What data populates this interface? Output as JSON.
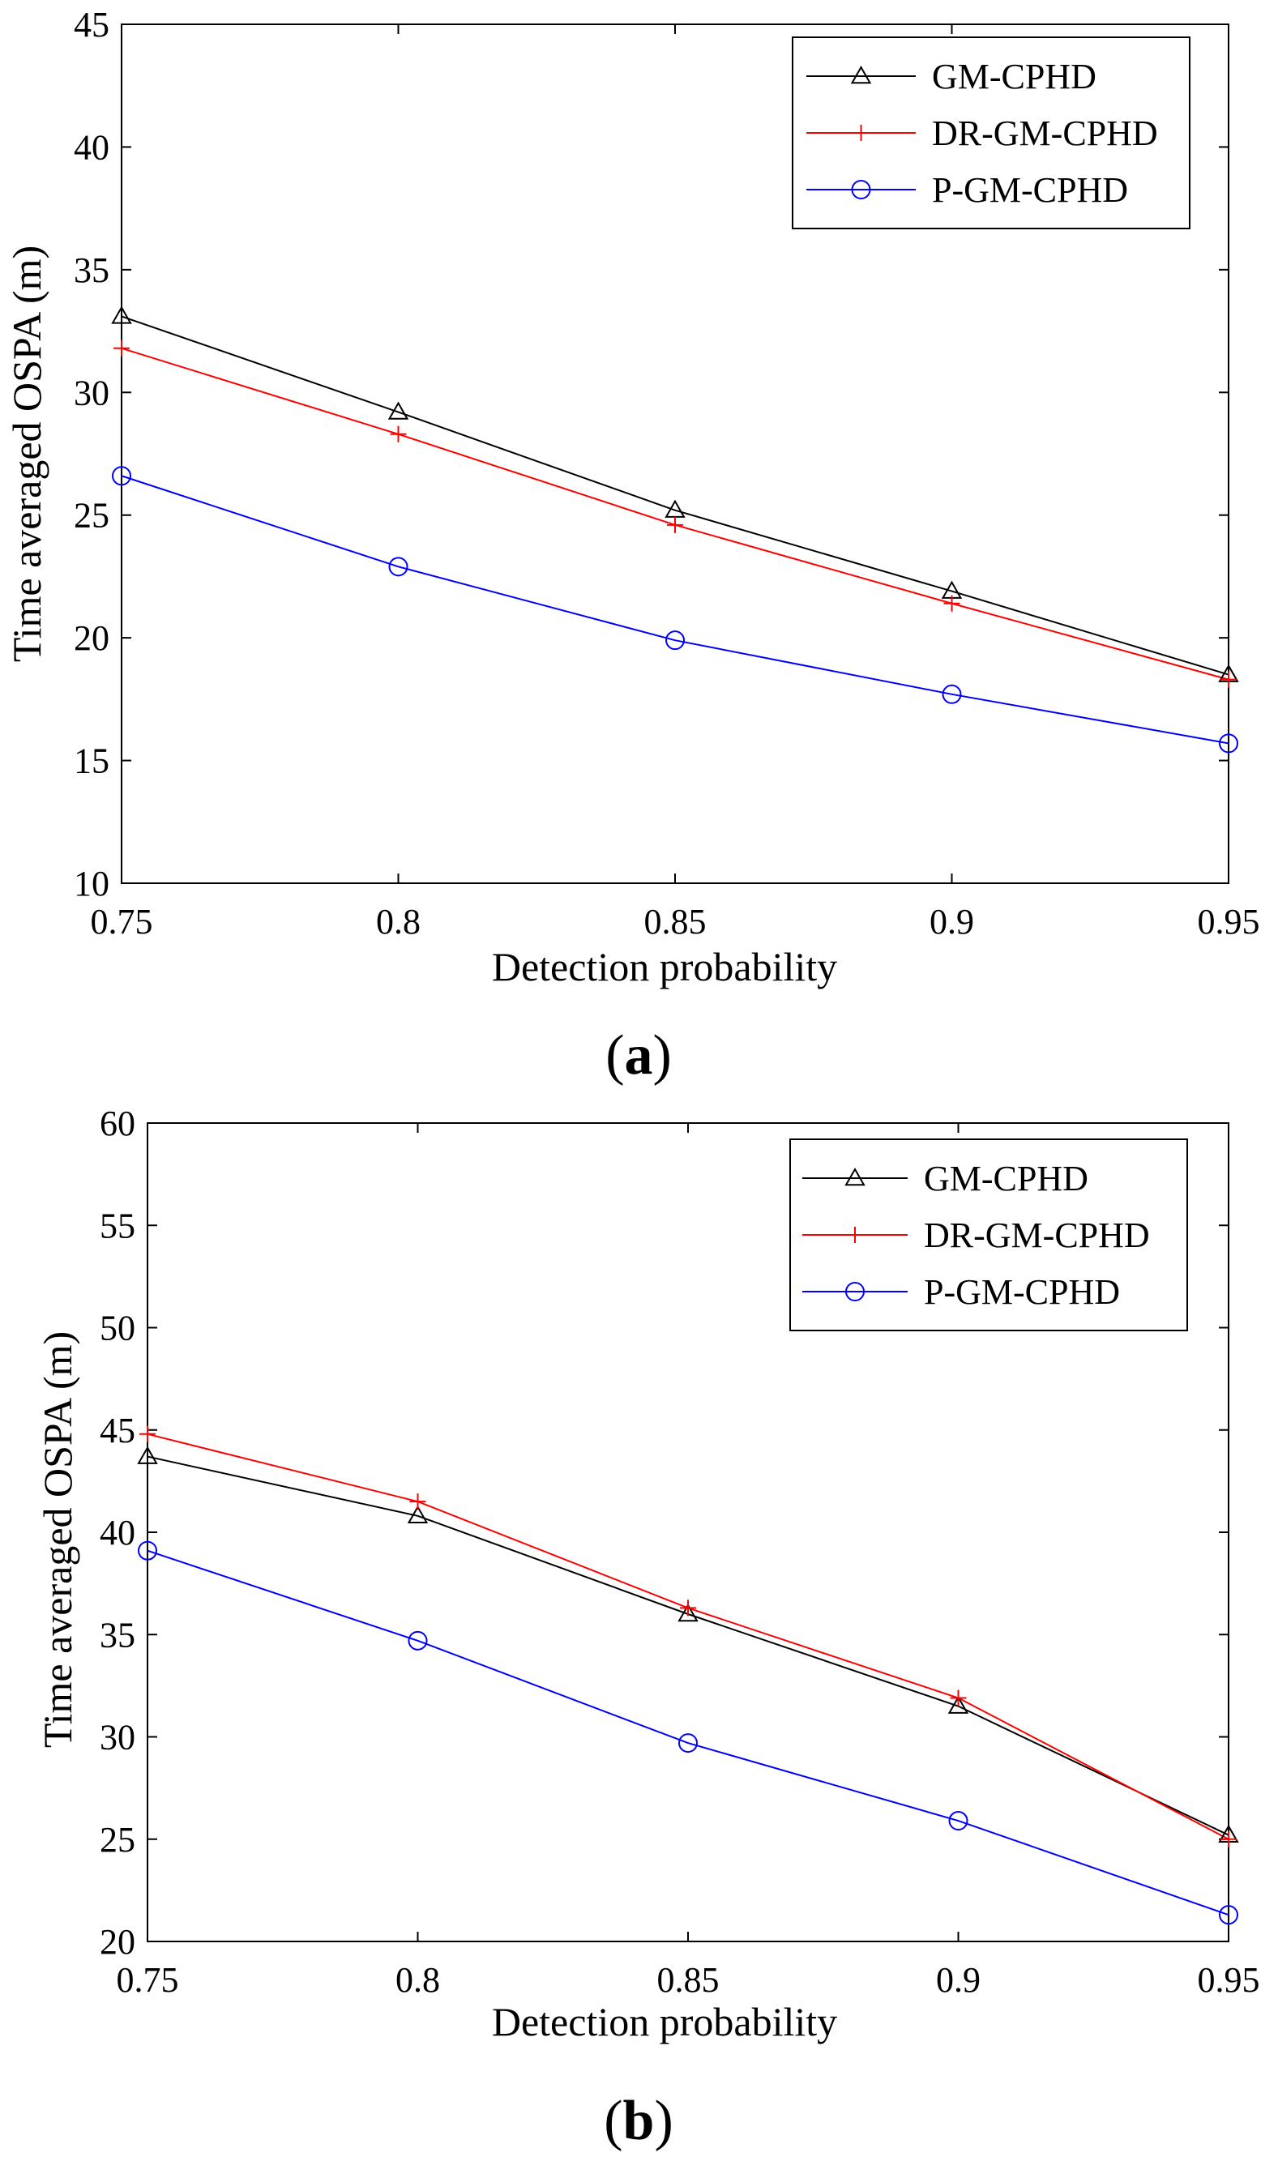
{
  "chart_data": [
    {
      "type": "line",
      "caption": "a",
      "x": [
        0.75,
        0.8,
        0.85,
        0.9,
        0.95
      ],
      "xticks": [
        "0.75",
        "0.8",
        "0.85",
        "0.9",
        "0.95"
      ],
      "xlim": [
        0.75,
        0.95
      ],
      "yticks": [
        "10",
        "15",
        "20",
        "25",
        "30",
        "35",
        "40",
        "45"
      ],
      "ylim": [
        10,
        45
      ],
      "xlabel": "Detection probability",
      "ylabel": "Time averaged OSPA (m)",
      "legend_position": "top-right",
      "series": [
        {
          "name": "GM-CPHD",
          "color": "#000000",
          "marker": "triangle",
          "values": [
            33.1,
            29.2,
            25.2,
            21.9,
            18.5
          ]
        },
        {
          "name": "DR-GM-CPHD",
          "color": "#ff0000",
          "marker": "plus",
          "values": [
            31.8,
            28.3,
            24.6,
            21.4,
            18.3
          ]
        },
        {
          "name": "P-GM-CPHD",
          "color": "#0000ff",
          "marker": "circle",
          "values": [
            26.6,
            22.9,
            19.9,
            17.7,
            15.7
          ]
        }
      ]
    },
    {
      "type": "line",
      "caption": "b",
      "x": [
        0.75,
        0.8,
        0.85,
        0.9,
        0.95
      ],
      "xticks": [
        "0.75",
        "0.8",
        "0.85",
        "0.9",
        "0.95"
      ],
      "xlim": [
        0.75,
        0.95
      ],
      "yticks": [
        "20",
        "25",
        "30",
        "35",
        "40",
        "45",
        "50",
        "55",
        "60"
      ],
      "ylim": [
        20,
        60
      ],
      "xlabel": "Detection probability",
      "ylabel": "Time averaged OSPA (m)",
      "legend_position": "top-right",
      "series": [
        {
          "name": "GM-CPHD",
          "color": "#000000",
          "marker": "triangle",
          "values": [
            43.7,
            40.8,
            36.0,
            31.5,
            25.2
          ]
        },
        {
          "name": "DR-GM-CPHD",
          "color": "#ff0000",
          "marker": "plus",
          "values": [
            44.8,
            41.5,
            36.3,
            31.9,
            25.0
          ]
        },
        {
          "name": "P-GM-CPHD",
          "color": "#0000ff",
          "marker": "circle",
          "values": [
            39.1,
            34.7,
            29.7,
            25.9,
            21.3
          ]
        }
      ]
    }
  ]
}
